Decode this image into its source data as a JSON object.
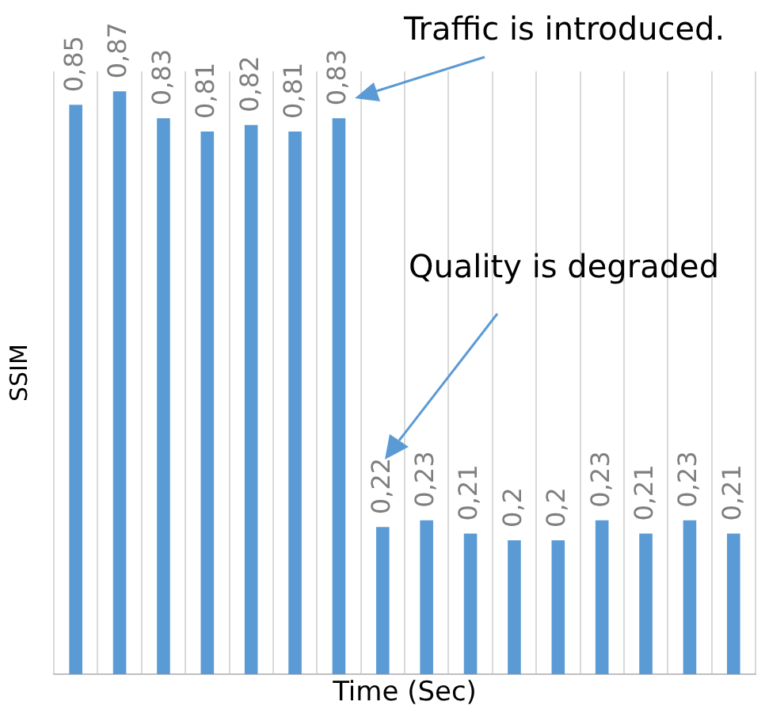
{
  "chart_data": {
    "type": "bar",
    "xlabel": "Time (Sec)",
    "ylabel": "SSIM",
    "categories": [
      null,
      null,
      null,
      null,
      null,
      null,
      null,
      null,
      null,
      null,
      null,
      null,
      null,
      null,
      null,
      null
    ],
    "values": [
      0.85,
      0.87,
      0.83,
      0.81,
      0.82,
      0.81,
      0.83,
      0.22,
      0.23,
      0.21,
      0.2,
      0.2,
      0.23,
      0.21,
      0.23,
      0.21
    ],
    "value_labels": [
      "0,85",
      "0,87",
      "0,83",
      "0,81",
      "0,82",
      "0,81",
      "0,83",
      "0,22",
      "0,23",
      "0,21",
      "0,2",
      "0,2",
      "0,23",
      "0,21",
      "0,23",
      "0,21"
    ],
    "color": "#5b9bd5",
    "grid": "x",
    "tick_labels": false,
    "legend": false,
    "annotations": [
      "Traffic is introduced.",
      "Quality is degraded"
    ]
  }
}
